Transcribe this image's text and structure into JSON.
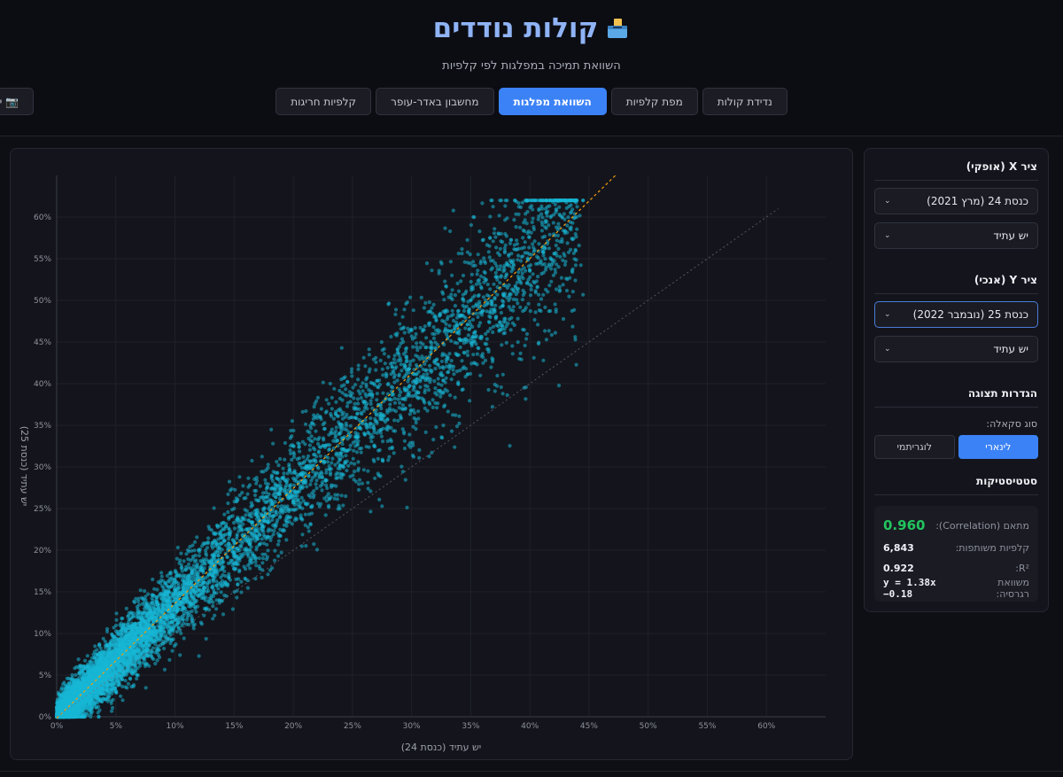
{
  "header": {
    "title": "קולות נודדים",
    "subtitle": "השוואת תמיכה במפלגות לפי קלפיות",
    "screenshot_label": "📷 יי"
  },
  "tabs": [
    {
      "label": "נדידת קולות",
      "active": false
    },
    {
      "label": "מפת קלפיות",
      "active": false
    },
    {
      "label": "השוואת מפלגות",
      "active": true
    },
    {
      "label": "מחשבון באדר-עופר",
      "active": false
    },
    {
      "label": "קלפיות חריגות",
      "active": false
    }
  ],
  "sidebar": {
    "x_axis_title": "ציר X (אופקי)",
    "x_election": "כנסת 24 (מרץ 2021)",
    "x_party": "יש עתיד",
    "y_axis_title": "ציר Y (אנכי)",
    "y_election": "כנסת 25 (נובמבר 2022)",
    "y_party": "יש עתיד",
    "display_title": "הגדרות תצוגה",
    "scale_label": "סוג סקאלה:",
    "scale_linear": "לינארי",
    "scale_log": "לוגריתמי",
    "stats_title": "סטטיסטיקות",
    "stats": {
      "correlation_label": "מתאם (Correlation):",
      "correlation_value": "0.960",
      "shared_label": "קלפיות משותפות:",
      "shared_value": "6,843",
      "r2_label": "R²:",
      "r2_value": "0.922",
      "regression_label": "משוואת רגרסיה:",
      "regression_value": "y = 1.38x −0.18"
    }
  },
  "chart_data": {
    "type": "scatter",
    "xlabel": "יש עתיד (כנסת 24)",
    "ylabel": "יש עתיד (כנסת 25)",
    "xlim": [
      0,
      65
    ],
    "ylim": [
      0,
      65
    ],
    "x_ticks": [
      "0%",
      "5%",
      "10%",
      "15%",
      "20%",
      "25%",
      "30%",
      "35%",
      "40%",
      "45%",
      "50%",
      "55%",
      "60%"
    ],
    "y_ticks": [
      "0%",
      "5%",
      "10%",
      "15%",
      "20%",
      "25%",
      "30%",
      "35%",
      "40%",
      "45%",
      "50%",
      "55%",
      "60%"
    ],
    "point_count": 6843,
    "regression": {
      "slope": 1.38,
      "intercept": -0.18
    },
    "colors": {
      "points": "#17b7d6",
      "regression": "#f59e0b",
      "identity": "#6b7280"
    },
    "grid": true,
    "legend": "none"
  }
}
